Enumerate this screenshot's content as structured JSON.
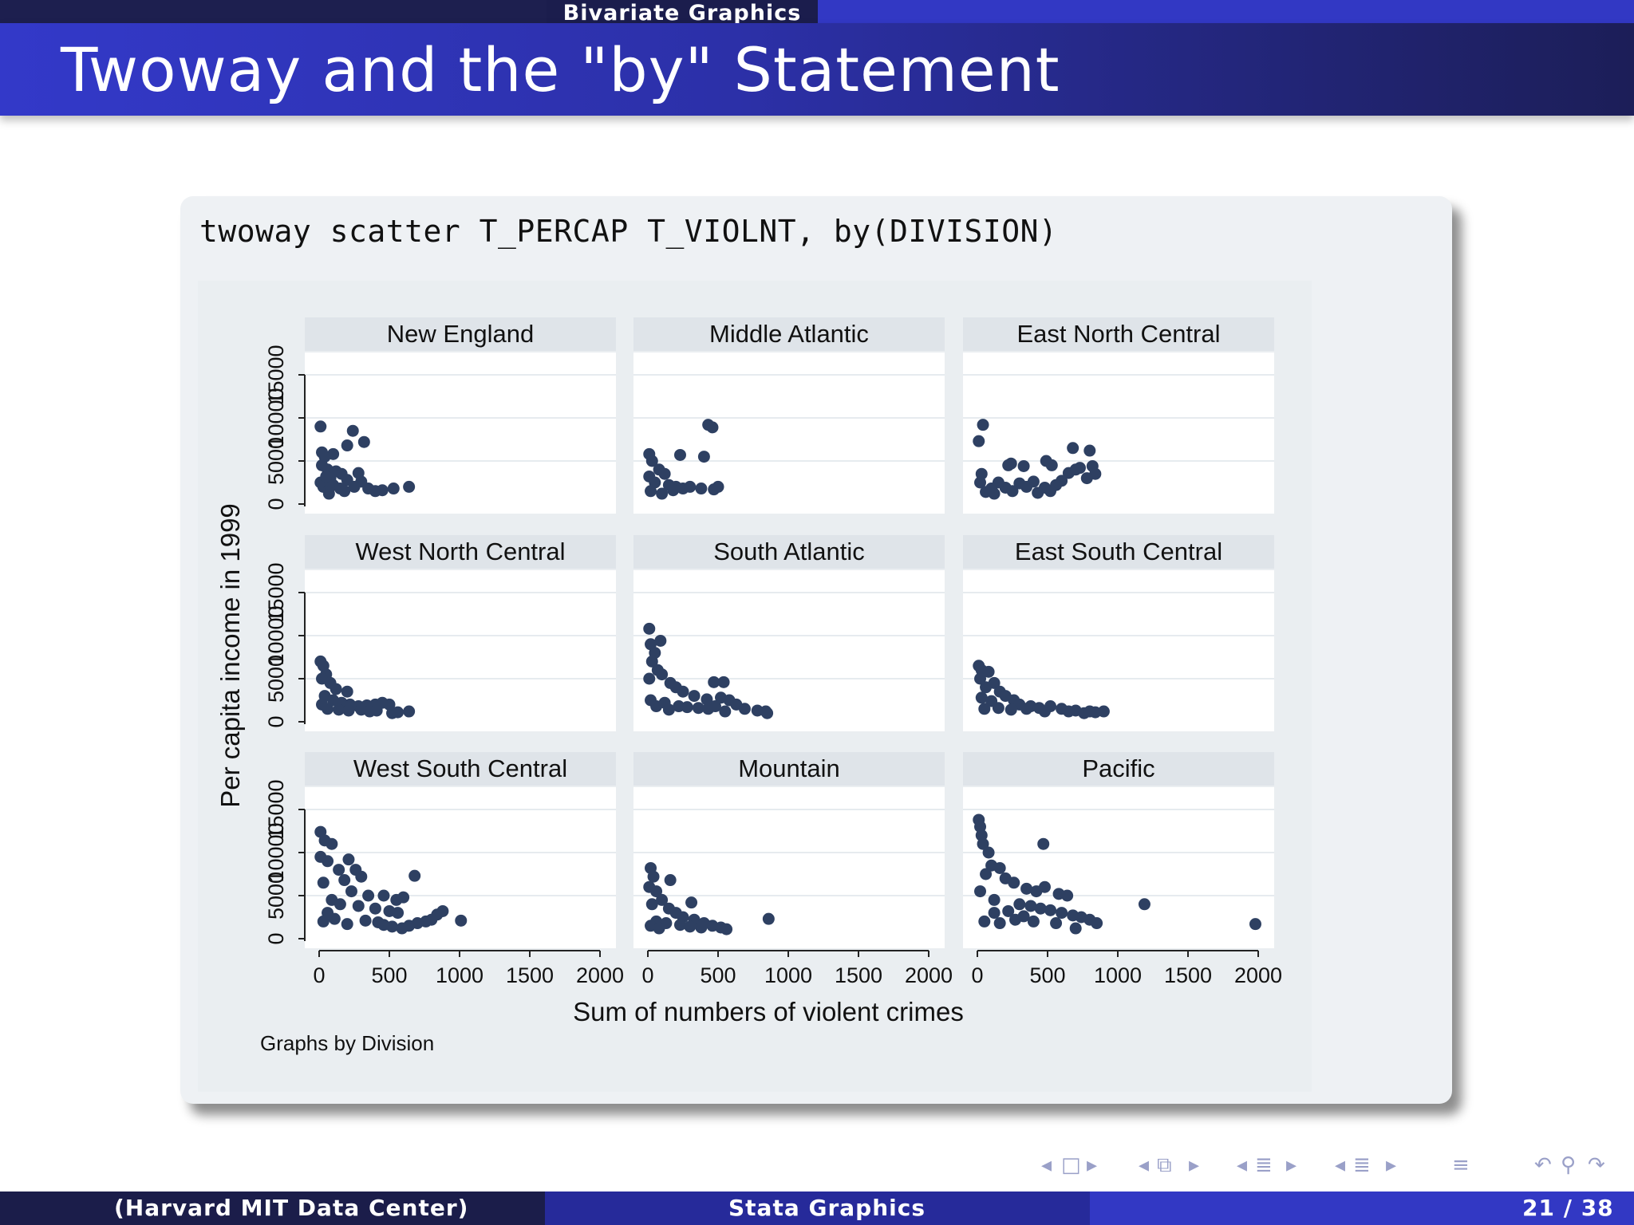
{
  "header": {
    "section": "Bivariate Graphics",
    "title": "Twoway and the \"by\" Statement"
  },
  "command": "twoway scatter T_PERCAP T_VIOLNT, by(DIVISION)",
  "footer": {
    "left": "(Harvard MIT Data Center)",
    "center": "Stata Graphics",
    "page": "21 / 38"
  },
  "nav_icons": [
    "nav-frame-prev-icon",
    "nav-frame-icon",
    "nav-frame-next-icon",
    "nav-subsection-prev-icon",
    "nav-subsection-icon",
    "nav-subsection-next-icon",
    "nav-section-prev-icon",
    "nav-section-icon",
    "nav-section-next-icon",
    "nav-outline-prev-icon",
    "nav-outline-icon",
    "nav-outline-next-icon",
    "nav-doc-icon",
    "nav-back-icon",
    "nav-search-icon",
    "nav-forward-icon"
  ],
  "chart_data": {
    "type": "scatter",
    "ylabel": "Per capita income in 1999",
    "xlabel": "Sum of numbers of violent crimes",
    "note": "Graphs by Division",
    "xlim": [
      0,
      2000
    ],
    "ylim": [
      0,
      15000
    ],
    "x_ticks": [
      "0",
      "500",
      "1000",
      "1500",
      "2000"
    ],
    "y_ticks": [
      "0",
      "5000",
      "10000",
      "15000"
    ],
    "marker_color": "#2e4062",
    "panel_bg": "#ffffff",
    "strip_bg": "#dfe4e9",
    "panels": [
      {
        "name": "New England",
        "points": [
          [
            10,
            9000
          ],
          [
            240,
            8500
          ],
          [
            320,
            7200
          ],
          [
            200,
            6800
          ],
          [
            100,
            5800
          ],
          [
            40,
            5500
          ],
          [
            20,
            4500
          ],
          [
            60,
            4000
          ],
          [
            120,
            3800
          ],
          [
            160,
            3500
          ],
          [
            280,
            3600
          ],
          [
            80,
            3000
          ],
          [
            200,
            2800
          ],
          [
            300,
            2600
          ],
          [
            30,
            2000
          ],
          [
            100,
            2200
          ],
          [
            150,
            1800
          ],
          [
            250,
            2000
          ],
          [
            350,
            1800
          ],
          [
            450,
            1600
          ],
          [
            530,
            1800
          ],
          [
            640,
            2000
          ],
          [
            70,
            1200
          ],
          [
            180,
            1500
          ],
          [
            10,
            2500
          ],
          [
            50,
            3200
          ],
          [
            400,
            1500
          ],
          [
            20,
            6000
          ]
        ]
      },
      {
        "name": "Middle Atlantic",
        "points": [
          [
            430,
            9200
          ],
          [
            460,
            8900
          ],
          [
            10,
            5800
          ],
          [
            230,
            5700
          ],
          [
            400,
            5500
          ],
          [
            30,
            5000
          ],
          [
            80,
            4000
          ],
          [
            120,
            3500
          ],
          [
            10,
            3200
          ],
          [
            50,
            2500
          ],
          [
            150,
            2200
          ],
          [
            200,
            2000
          ],
          [
            250,
            1800
          ],
          [
            300,
            2000
          ],
          [
            380,
            1800
          ],
          [
            470,
            1700
          ],
          [
            500,
            2000
          ],
          [
            20,
            1500
          ],
          [
            100,
            1200
          ],
          [
            180,
            1600
          ]
        ]
      },
      {
        "name": "East North Central",
        "points": [
          [
            40,
            9200
          ],
          [
            10,
            7300
          ],
          [
            220,
            4500
          ],
          [
            240,
            4700
          ],
          [
            330,
            4400
          ],
          [
            490,
            5000
          ],
          [
            530,
            4500
          ],
          [
            680,
            6500
          ],
          [
            800,
            6200
          ],
          [
            820,
            4400
          ],
          [
            840,
            3500
          ],
          [
            780,
            3000
          ],
          [
            730,
            4200
          ],
          [
            650,
            3600
          ],
          [
            600,
            2700
          ],
          [
            560,
            2200
          ],
          [
            480,
            1900
          ],
          [
            400,
            2600
          ],
          [
            350,
            2000
          ],
          [
            300,
            2400
          ],
          [
            200,
            1900
          ],
          [
            150,
            2500
          ],
          [
            100,
            1800
          ],
          [
            30,
            3500
          ],
          [
            20,
            2500
          ],
          [
            60,
            1400
          ],
          [
            120,
            1200
          ],
          [
            250,
            1500
          ],
          [
            430,
            1300
          ],
          [
            520,
            1500
          ],
          [
            700,
            4000
          ]
        ]
      },
      {
        "name": "West North Central",
        "points": [
          [
            10,
            7000
          ],
          [
            30,
            6500
          ],
          [
            50,
            5500
          ],
          [
            20,
            5000
          ],
          [
            80,
            4500
          ],
          [
            120,
            3800
          ],
          [
            200,
            3500
          ],
          [
            40,
            3000
          ],
          [
            100,
            2500
          ],
          [
            160,
            2200
          ],
          [
            220,
            2000
          ],
          [
            280,
            1800
          ],
          [
            340,
            1900
          ],
          [
            400,
            2000
          ],
          [
            450,
            2200
          ],
          [
            520,
            1000
          ],
          [
            560,
            1100
          ],
          [
            640,
            1200
          ],
          [
            60,
            1500
          ],
          [
            140,
            1400
          ],
          [
            210,
            1300
          ],
          [
            300,
            1400
          ],
          [
            360,
            1200
          ],
          [
            410,
            1300
          ],
          [
            500,
            2000
          ],
          [
            20,
            2000
          ]
        ]
      },
      {
        "name": "South Atlantic",
        "points": [
          [
            10,
            10800
          ],
          [
            20,
            9000
          ],
          [
            90,
            9400
          ],
          [
            50,
            8000
          ],
          [
            30,
            7000
          ],
          [
            70,
            6000
          ],
          [
            100,
            5500
          ],
          [
            10,
            5000
          ],
          [
            160,
            4500
          ],
          [
            200,
            4000
          ],
          [
            250,
            3500
          ],
          [
            330,
            3000
          ],
          [
            420,
            2600
          ],
          [
            470,
            4600
          ],
          [
            540,
            4600
          ],
          [
            520,
            2800
          ],
          [
            580,
            2500
          ],
          [
            630,
            2000
          ],
          [
            690,
            1500
          ],
          [
            780,
            1300
          ],
          [
            840,
            1200
          ],
          [
            850,
            1000
          ],
          [
            120,
            2200
          ],
          [
            60,
            1800
          ],
          [
            280,
            1700
          ],
          [
            360,
            1600
          ],
          [
            430,
            1500
          ],
          [
            20,
            2500
          ],
          [
            150,
            1400
          ],
          [
            220,
            1800
          ],
          [
            480,
            1800
          ],
          [
            550,
            1200
          ]
        ]
      },
      {
        "name": "East South Central",
        "points": [
          [
            10,
            6500
          ],
          [
            30,
            6000
          ],
          [
            80,
            5800
          ],
          [
            20,
            5000
          ],
          [
            120,
            4500
          ],
          [
            60,
            4000
          ],
          [
            160,
            3500
          ],
          [
            200,
            3000
          ],
          [
            30,
            2800
          ],
          [
            260,
            2500
          ],
          [
            100,
            2400
          ],
          [
            300,
            2000
          ],
          [
            380,
            1800
          ],
          [
            440,
            1600
          ],
          [
            520,
            1800
          ],
          [
            600,
            1500
          ],
          [
            700,
            1300
          ],
          [
            760,
            1000
          ],
          [
            800,
            1200
          ],
          [
            840,
            1100
          ],
          [
            900,
            1200
          ],
          [
            150,
            1600
          ],
          [
            240,
            1400
          ],
          [
            350,
            1500
          ],
          [
            480,
            1200
          ],
          [
            50,
            1500
          ],
          [
            650,
            1200
          ]
        ]
      },
      {
        "name": "West South Central",
        "points": [
          [
            10,
            12400
          ],
          [
            40,
            11400
          ],
          [
            90,
            11000
          ],
          [
            10,
            9500
          ],
          [
            140,
            8000
          ],
          [
            210,
            9200
          ],
          [
            260,
            8000
          ],
          [
            180,
            6800
          ],
          [
            300,
            7200
          ],
          [
            680,
            7300
          ],
          [
            230,
            5500
          ],
          [
            350,
            5000
          ],
          [
            460,
            5000
          ],
          [
            550,
            4500
          ],
          [
            600,
            4800
          ],
          [
            90,
            4500
          ],
          [
            150,
            4000
          ],
          [
            280,
            3800
          ],
          [
            400,
            3500
          ],
          [
            500,
            3200
          ],
          [
            560,
            3000
          ],
          [
            880,
            3200
          ],
          [
            840,
            2800
          ],
          [
            800,
            2200
          ],
          [
            760,
            2000
          ],
          [
            700,
            1800
          ],
          [
            640,
            1500
          ],
          [
            590,
            1200
          ],
          [
            520,
            1400
          ],
          [
            460,
            1600
          ],
          [
            1010,
            2100
          ],
          [
            30,
            2000
          ],
          [
            110,
            2300
          ],
          [
            200,
            1700
          ],
          [
            330,
            2100
          ],
          [
            420,
            1900
          ],
          [
            60,
            3000
          ],
          [
            30,
            6500
          ],
          [
            60,
            9000
          ]
        ]
      },
      {
        "name": "Mountain",
        "points": [
          [
            20,
            8200
          ],
          [
            40,
            7200
          ],
          [
            10,
            6000
          ],
          [
            160,
            6800
          ],
          [
            60,
            5500
          ],
          [
            100,
            4500
          ],
          [
            310,
            4200
          ],
          [
            30,
            4000
          ],
          [
            150,
            3500
          ],
          [
            200,
            3000
          ],
          [
            250,
            2500
          ],
          [
            330,
            2200
          ],
          [
            400,
            1800
          ],
          [
            460,
            1500
          ],
          [
            520,
            1300
          ],
          [
            560,
            1100
          ],
          [
            860,
            2300
          ],
          [
            60,
            2000
          ],
          [
            130,
            1800
          ],
          [
            230,
            1600
          ],
          [
            300,
            1400
          ],
          [
            20,
            1500
          ],
          [
            80,
            1200
          ],
          [
            380,
            1300
          ]
        ]
      },
      {
        "name": "Pacific",
        "points": [
          [
            10,
            13800
          ],
          [
            20,
            13000
          ],
          [
            30,
            12000
          ],
          [
            40,
            11000
          ],
          [
            80,
            10000
          ],
          [
            470,
            11000
          ],
          [
            100,
            8500
          ],
          [
            160,
            8200
          ],
          [
            60,
            7500
          ],
          [
            200,
            7000
          ],
          [
            260,
            6500
          ],
          [
            350,
            5800
          ],
          [
            420,
            5500
          ],
          [
            480,
            6000
          ],
          [
            580,
            5200
          ],
          [
            640,
            5000
          ],
          [
            120,
            4500
          ],
          [
            300,
            4000
          ],
          [
            380,
            3800
          ],
          [
            450,
            3500
          ],
          [
            520,
            3300
          ],
          [
            600,
            3000
          ],
          [
            680,
            2700
          ],
          [
            740,
            2500
          ],
          [
            800,
            2200
          ],
          [
            850,
            1800
          ],
          [
            1190,
            4000
          ],
          [
            1980,
            1700
          ],
          [
            120,
            3000
          ],
          [
            220,
            3200
          ],
          [
            330,
            2600
          ],
          [
            50,
            2000
          ],
          [
            160,
            1800
          ],
          [
            270,
            2200
          ],
          [
            400,
            2000
          ],
          [
            560,
            1800
          ],
          [
            700,
            1200
          ],
          [
            20,
            5500
          ]
        ]
      }
    ]
  }
}
